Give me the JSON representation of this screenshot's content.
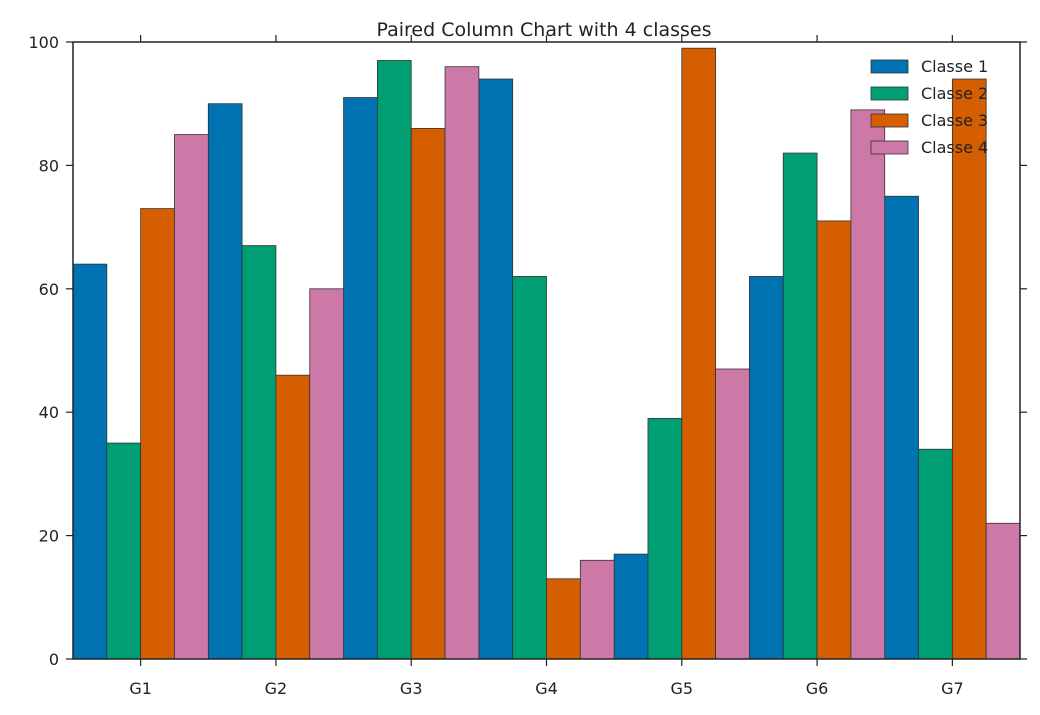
{
  "chart_data": {
    "type": "bar",
    "title": "Paired Column Chart with 4 classes",
    "xlabel": "",
    "ylabel": "",
    "categories": [
      "G1",
      "G2",
      "G3",
      "G4",
      "G5",
      "G6",
      "G7"
    ],
    "ylim": [
      0,
      100
    ],
    "yticks": [
      0,
      20,
      40,
      60,
      80,
      100
    ],
    "grid": false,
    "legend_position": "top-right",
    "series": [
      {
        "name": "Classe 1",
        "color": "#0072b2",
        "values": [
          64,
          90,
          91,
          94,
          17,
          62,
          75
        ]
      },
      {
        "name": "Classe 2",
        "color": "#009e73",
        "values": [
          35,
          67,
          97,
          62,
          39,
          82,
          34
        ]
      },
      {
        "name": "Classe 3",
        "color": "#d55e00",
        "values": [
          73,
          46,
          86,
          13,
          99,
          71,
          94
        ]
      },
      {
        "name": "Classe 4",
        "color": "#cc79a7",
        "values": [
          85,
          60,
          96,
          16,
          47,
          89,
          22
        ]
      }
    ]
  }
}
